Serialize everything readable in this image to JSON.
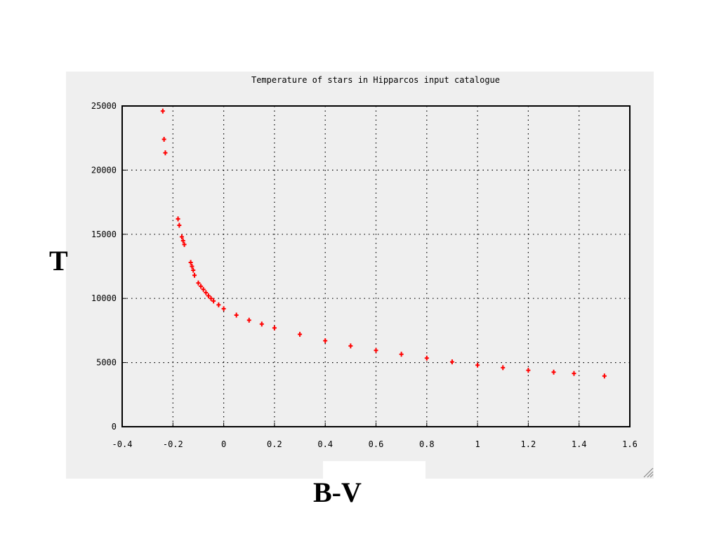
{
  "chart_data": {
    "type": "scatter",
    "title": "Temperature of stars in Hipparcos input catalogue",
    "xlabel": "B-V",
    "ylabel": "T",
    "xlim": [
      -0.4,
      1.6
    ],
    "ylim": [
      0,
      25000
    ],
    "x_ticks": [
      "-0.4",
      "-0.2",
      "0",
      "0.2",
      "0.4",
      "0.6",
      "0.8",
      "1",
      "1.2",
      "1.4",
      "1.6"
    ],
    "y_ticks": [
      "0",
      "5000",
      "10000",
      "15000",
      "20000",
      "25000"
    ],
    "grid": true,
    "marker_color": "#ff0000",
    "series": [
      {
        "points": [
          [
            -0.24,
            24600
          ],
          [
            -0.235,
            22400
          ],
          [
            -0.23,
            21350
          ],
          [
            -0.18,
            16200
          ],
          [
            -0.175,
            15700
          ],
          [
            -0.165,
            14800
          ],
          [
            -0.16,
            14500
          ],
          [
            -0.155,
            14200
          ],
          [
            -0.13,
            12800
          ],
          [
            -0.125,
            12500
          ],
          [
            -0.12,
            12200
          ],
          [
            -0.115,
            11800
          ],
          [
            -0.1,
            11200
          ],
          [
            -0.09,
            10950
          ],
          [
            -0.08,
            10700
          ],
          [
            -0.07,
            10450
          ],
          [
            -0.06,
            10200
          ],
          [
            -0.05,
            10000
          ],
          [
            -0.04,
            9800
          ],
          [
            -0.02,
            9500
          ],
          [
            0.0,
            9200
          ],
          [
            0.05,
            8700
          ],
          [
            0.1,
            8300
          ],
          [
            0.15,
            8000
          ],
          [
            0.2,
            7700
          ],
          [
            0.3,
            7200
          ],
          [
            0.4,
            6700
          ],
          [
            0.5,
            6300
          ],
          [
            0.6,
            5950
          ],
          [
            0.7,
            5650
          ],
          [
            0.8,
            5350
          ],
          [
            0.9,
            5050
          ],
          [
            1.0,
            4800
          ],
          [
            1.1,
            4600
          ],
          [
            1.2,
            4400
          ],
          [
            1.3,
            4250
          ],
          [
            1.38,
            4150
          ],
          [
            1.5,
            3950
          ]
        ]
      }
    ]
  }
}
